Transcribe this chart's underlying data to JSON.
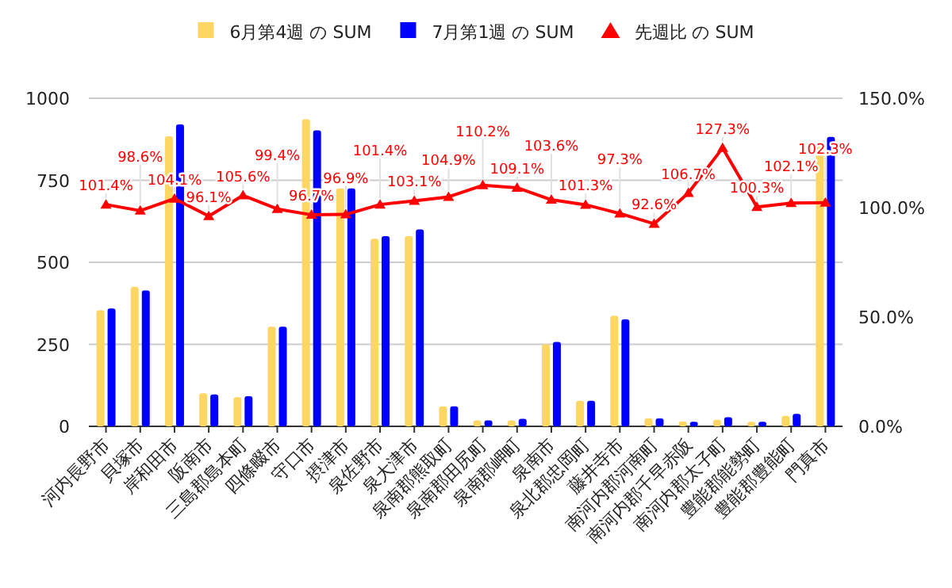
{
  "chart_data": {
    "type": "bar",
    "legend": "top",
    "grid": "y",
    "categories": [
      "河内長野市",
      "貝塚市",
      "岸和田市",
      "阪南市",
      "三島郡島本町",
      "四條畷市",
      "守口市",
      "摂津市",
      "泉佐野市",
      "泉大津市",
      "泉南郡熊取町",
      "泉南郡田尻町",
      "泉南郡岬町",
      "泉南市",
      "泉北郡忠岡町",
      "藤井寺市",
      "南河内郡河南町",
      "南河内郡千早赤阪",
      "南河内郡太子町",
      "豊能郡能勢町",
      "豊能郡豊能町",
      "門真市"
    ],
    "series": [
      {
        "name": "6月第4週 の SUM",
        "color": "#fdd663",
        "values": [
          354,
          425,
          884,
          101,
          89,
          304,
          936,
          725,
          572,
          580,
          61,
          18,
          18,
          250,
          78,
          337,
          24,
          15,
          20,
          14,
          32,
          859
        ]
      },
      {
        "name": "7月第1週 の SUM",
        "color": "#0000ff",
        "values": [
          359,
          414,
          920,
          97,
          92,
          304,
          902,
          725,
          580,
          600,
          61,
          18,
          23,
          257,
          78,
          326,
          24,
          14,
          28,
          14,
          38,
          882
        ]
      },
      {
        "name": "先週比 の SUM",
        "color": "#ff0000",
        "type": "line",
        "axis": "y2",
        "marker": "triangle",
        "values": [
          101.4,
          98.6,
          104.1,
          96.1,
          105.6,
          99.4,
          96.7,
          96.9,
          101.4,
          103.1,
          104.9,
          110.2,
          109.1,
          103.6,
          101.3,
          97.3,
          92.6,
          106.7,
          127.3,
          100.3,
          102.1,
          102.3
        ],
        "value_labels": [
          "101.4%",
          "98.6%",
          "104.1%",
          "96.1%",
          "105.6%",
          "99.4%",
          "96.7%",
          "96.9%",
          "101.4%",
          "103.1%",
          "104.9%",
          "110.2%",
          "109.1%",
          "103.6%",
          "101.3%",
          "97.3%",
          "92.6%",
          "106.7%",
          "127.3%",
          "100.3%",
          "102.1%",
          "102.3%"
        ]
      }
    ],
    "ylim": [
      0,
      1000
    ],
    "yticks": [
      0,
      250,
      500,
      750,
      1000
    ],
    "y2lim": [
      0,
      150
    ],
    "y2ticks": [
      {
        "value": 0,
        "label": "0.0%"
      },
      {
        "value": 50,
        "label": "50.0%"
      },
      {
        "value": 100,
        "label": "100.0%"
      },
      {
        "value": 150,
        "label": "150.0%"
      }
    ]
  }
}
